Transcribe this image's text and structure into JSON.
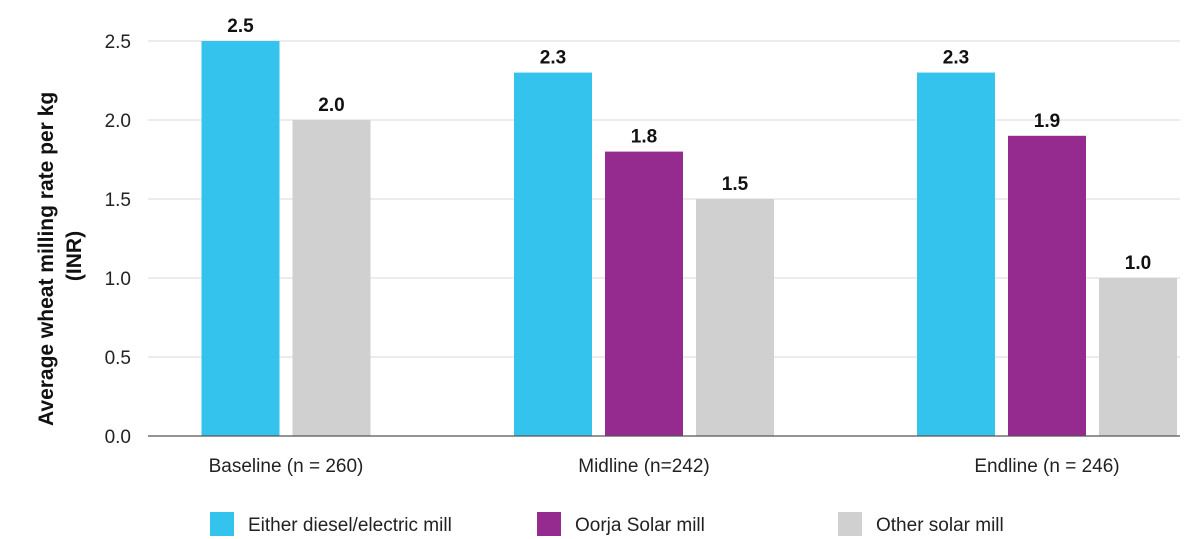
{
  "chart_data": {
    "type": "bar",
    "categories": [
      "Baseline (n = 260)",
      "Midline (n=242)",
      "Endline (n = 246)"
    ],
    "series": [
      {
        "name": "Either diesel/electric mill",
        "color": "#33C3EC",
        "values": [
          2.5,
          2.3,
          2.3
        ],
        "labels": [
          "2.5",
          "2.3",
          "2.3"
        ]
      },
      {
        "name": "Oorja Solar mill",
        "color": "#952B8F",
        "values": [
          null,
          1.8,
          1.9
        ],
        "labels": [
          "",
          "1.8",
          "1.9"
        ]
      },
      {
        "name": "Other solar mill",
        "color": "#D0D0D0",
        "values": [
          2.0,
          1.5,
          1.0
        ],
        "labels": [
          "2.0",
          "1.5",
          "1.0"
        ]
      }
    ],
    "ylabel_lines": [
      "Average wheat milling rate per kg",
      "(INR)"
    ],
    "xlabel": "",
    "title": "",
    "ylim": [
      0,
      2.5
    ],
    "yticks": [
      "0.0",
      "0.5",
      "1.0",
      "1.5",
      "2.0",
      "2.5"
    ],
    "grid": true,
    "legend_position": "bottom"
  }
}
